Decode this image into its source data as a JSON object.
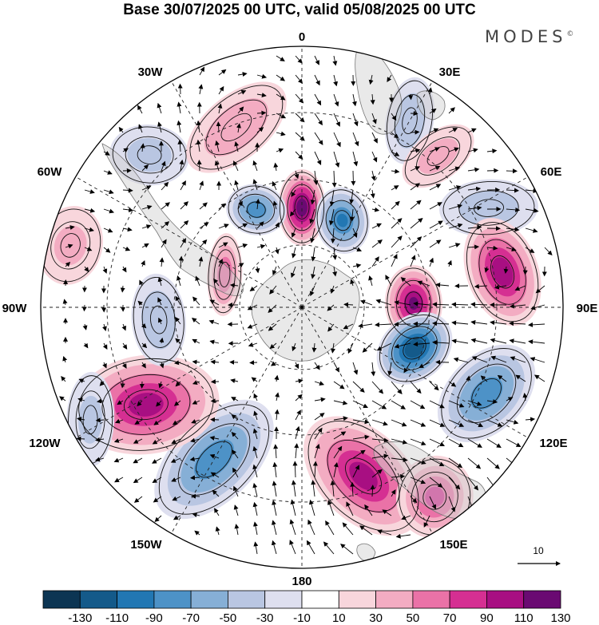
{
  "title": "Base 30/07/2025 00 UTC, valid 05/08/2025 00 UTC",
  "logo": "MODES",
  "logo_mark": "©",
  "map": {
    "projection": "south polar stereographic",
    "field": "anomaly (shaded) with wind vectors (arrows)",
    "longitude_labels": {
      "0": "0",
      "30E": "30E",
      "60E": "60E",
      "90E": "90E",
      "120E": "120E",
      "150E": "150E",
      "180": "180",
      "150W": "150W",
      "120W": "120W",
      "90W": "90W",
      "60W": "60W",
      "30W": "30W"
    },
    "vector_reference": {
      "label": "10",
      "value": 10
    },
    "anomaly_centers": [
      {
        "name": "high-0",
        "sign": "+",
        "lon_deg": 0,
        "intensity": 120
      },
      {
        "name": "low-20w",
        "sign": "-",
        "lon_deg": -25,
        "intensity": -80
      },
      {
        "name": "low-20e",
        "sign": "-",
        "lon_deg": 25,
        "intensity": -90
      },
      {
        "name": "low-30e-outer",
        "sign": "-",
        "lon_deg": 30,
        "intensity": -45
      },
      {
        "name": "high-40e",
        "sign": "+",
        "lon_deg": 42,
        "intensity": 35
      },
      {
        "name": "low-65e",
        "sign": "-",
        "lon_deg": 62,
        "intensity": -40
      },
      {
        "name": "high-90e-inner",
        "sign": "+",
        "lon_deg": 88,
        "intensity": 110
      },
      {
        "name": "high-90e-outer",
        "sign": "+",
        "lon_deg": 80,
        "intensity": 100
      },
      {
        "name": "low-110e",
        "sign": "-",
        "lon_deg": 110,
        "intensity": -125
      },
      {
        "name": "low-120e",
        "sign": "-",
        "lon_deg": 115,
        "intensity": -80
      },
      {
        "name": "high-160e",
        "sign": "+",
        "lon_deg": 160,
        "intensity": 95
      },
      {
        "name": "high-145e",
        "sign": "+",
        "lon_deg": 145,
        "intensity": 70
      },
      {
        "name": "low-150w",
        "sign": "-",
        "lon_deg": -150,
        "intensity": -80
      },
      {
        "name": "high-120w",
        "sign": "+",
        "lon_deg": -122,
        "intensity": 95
      },
      {
        "name": "low-95w",
        "sign": "-",
        "lon_deg": -95,
        "intensity": -45
      },
      {
        "name": "high-70w-inner",
        "sign": "+",
        "lon_deg": -67,
        "intensity": 60
      },
      {
        "name": "high-75w-outer",
        "sign": "+",
        "lon_deg": -75,
        "intensity": 30
      },
      {
        "name": "low-45w",
        "sign": "-",
        "lon_deg": -45,
        "intensity": -35
      },
      {
        "name": "high-20w-outer",
        "sign": "+",
        "lon_deg": -20,
        "intensity": 45
      },
      {
        "name": "low-120w-outer",
        "sign": "-",
        "lon_deg": -118,
        "intensity": -30
      }
    ]
  },
  "colorbar": {
    "ticks": [
      "-130",
      "-110",
      "-90",
      "-70",
      "-50",
      "-30",
      "-10",
      "10",
      "30",
      "50",
      "70",
      "90",
      "110",
      "130"
    ],
    "colors": [
      "#0c3553",
      "#145a8a",
      "#2277b3",
      "#4d92c7",
      "#86afd6",
      "#b9c6e2",
      "#dedfef",
      "#ffffff",
      "#f8d6dc",
      "#f3acc2",
      "#ea72a7",
      "#d52f92",
      "#a80f82",
      "#6a0a72"
    ]
  }
}
